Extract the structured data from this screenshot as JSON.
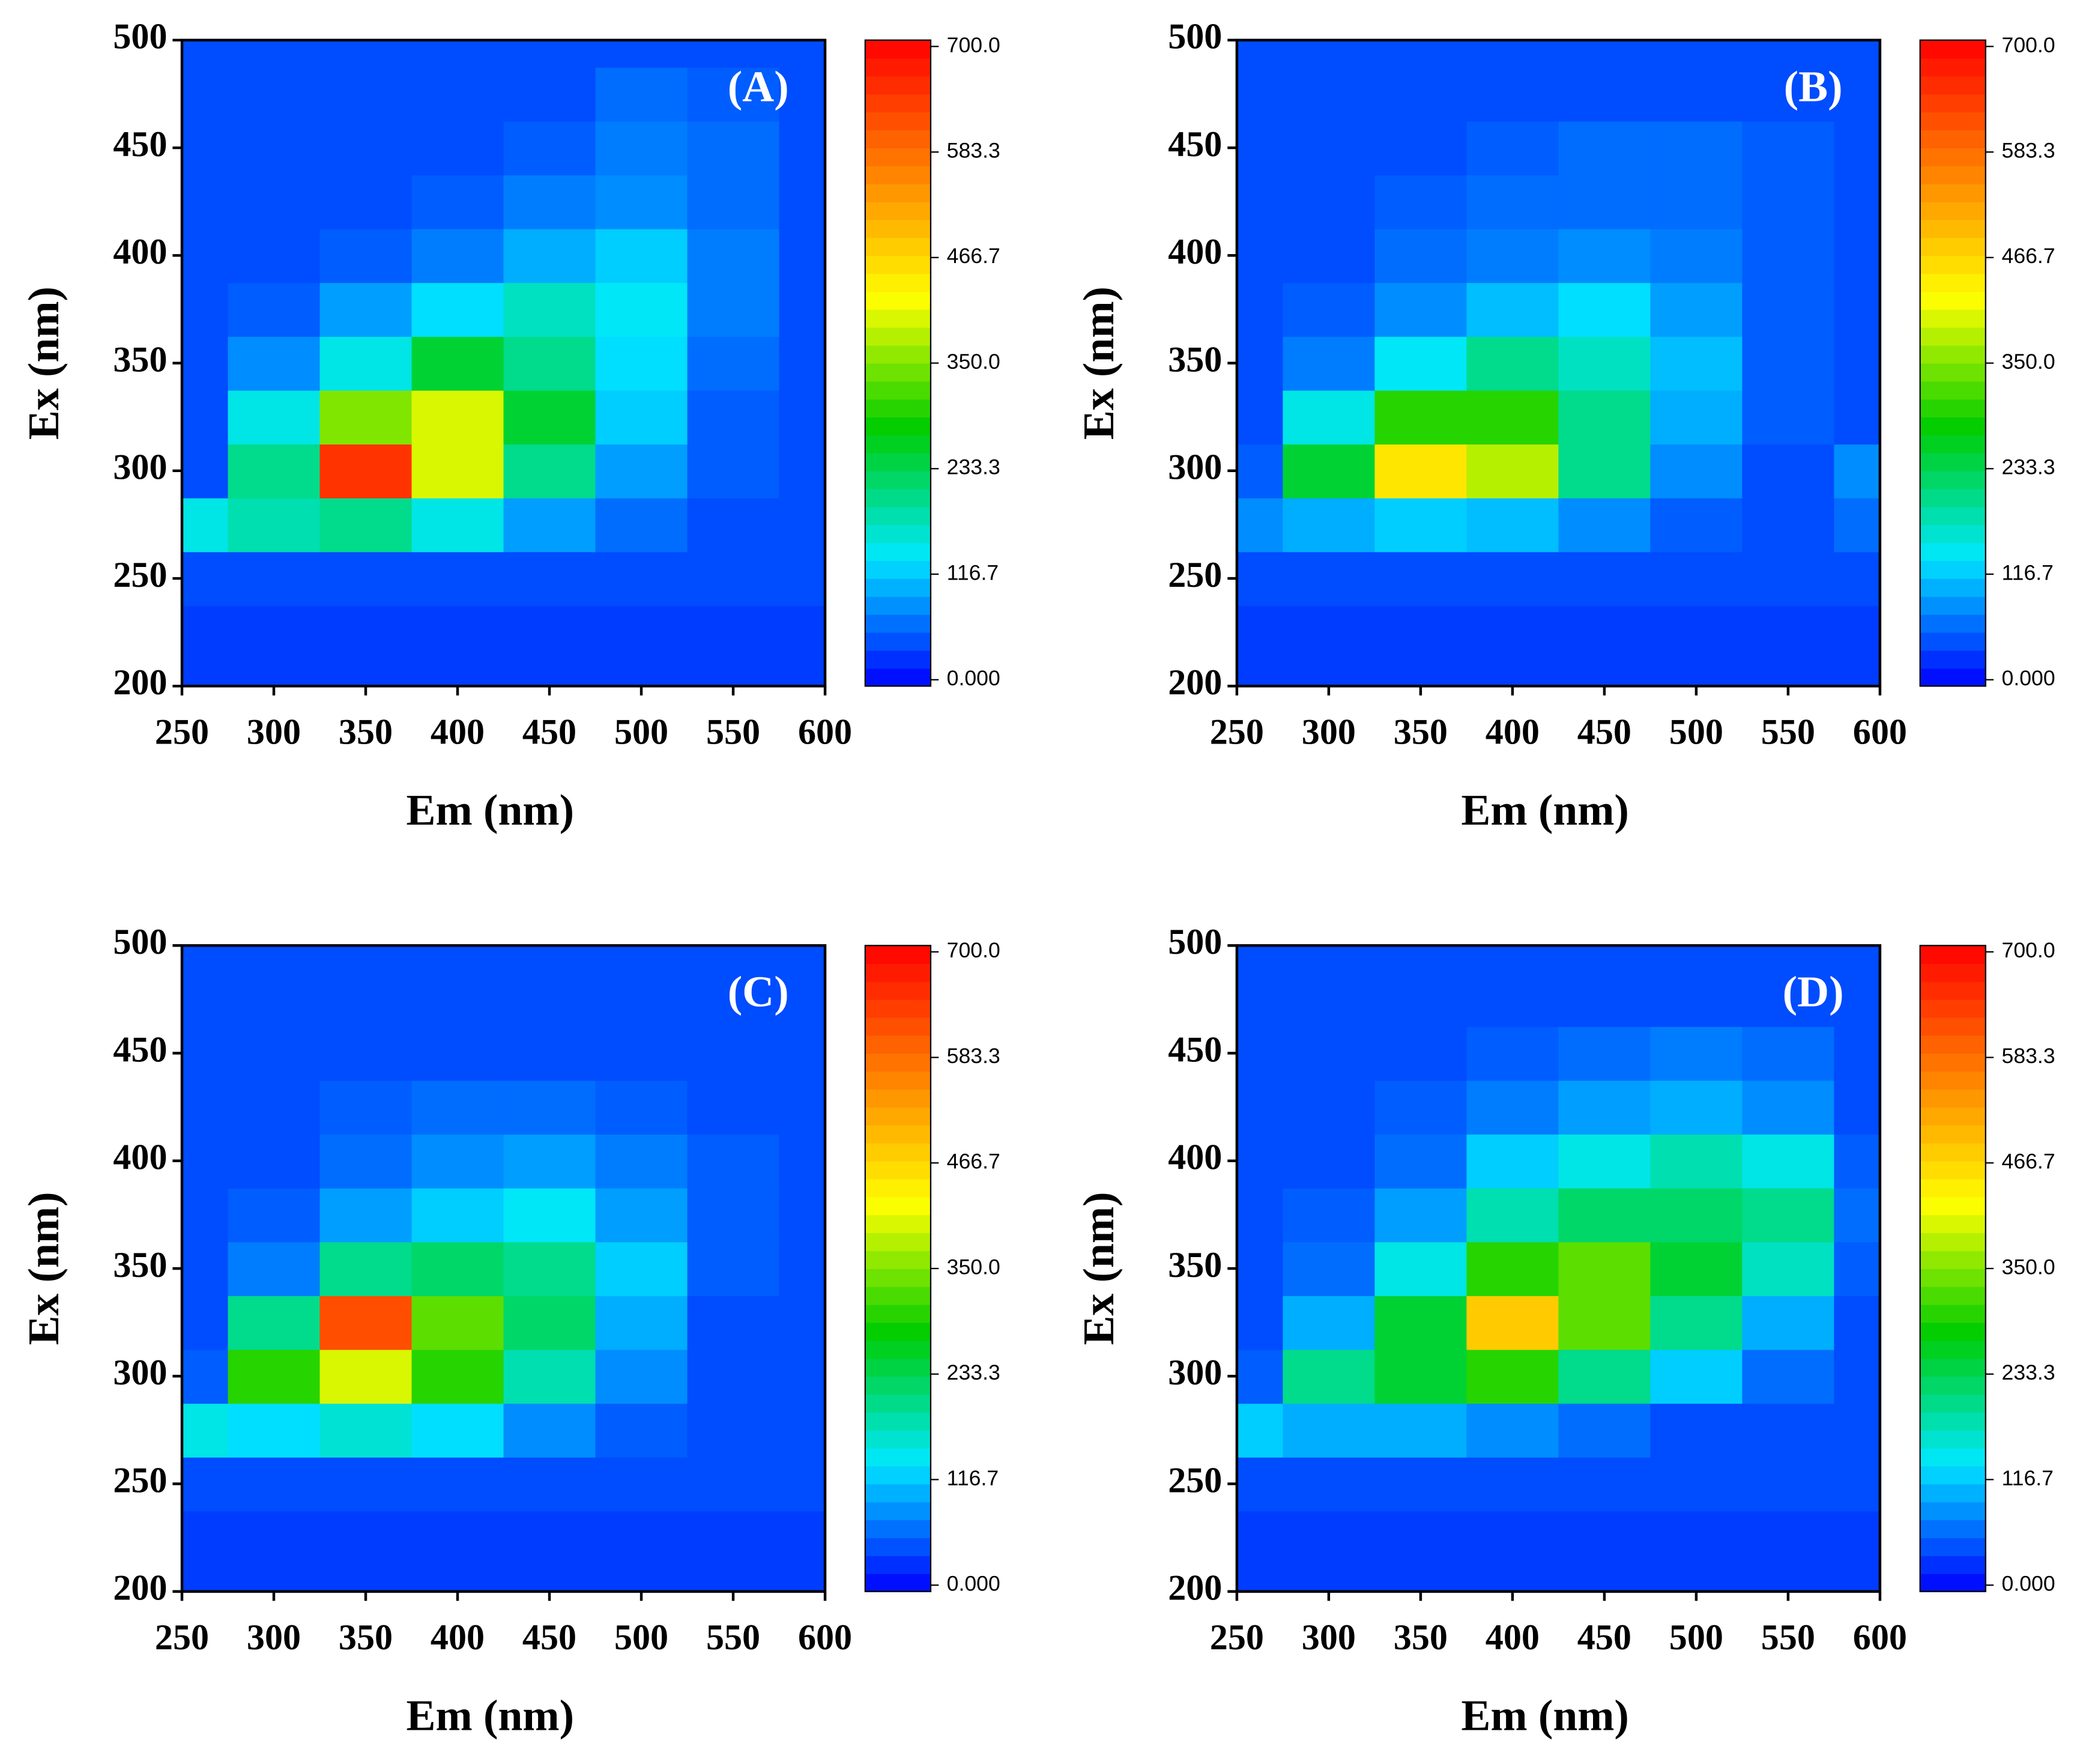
{
  "chart_data": [
    {
      "type": "contour",
      "label": "(A)",
      "x_label": "Em (nm)",
      "y_label": "Ex (nm)",
      "x": [
        250,
        300,
        350,
        400,
        450,
        500,
        550,
        600
      ],
      "y": [
        200,
        225,
        250,
        275,
        300,
        325,
        350,
        375,
        400,
        425,
        450,
        475,
        500
      ],
      "z": [
        [
          30,
          30,
          30,
          30,
          30,
          30,
          30,
          30
        ],
        [
          30,
          30,
          30,
          30,
          30,
          30,
          30,
          30
        ],
        [
          40,
          40,
          40,
          40,
          40,
          40,
          40,
          40
        ],
        [
          150,
          180,
          200,
          150,
          90,
          60,
          40,
          40
        ],
        [
          40,
          200,
          650,
          400,
          200,
          90,
          50,
          40
        ],
        [
          40,
          150,
          350,
          400,
          250,
          120,
          50,
          40
        ],
        [
          40,
          80,
          150,
          250,
          200,
          130,
          60,
          40
        ],
        [
          40,
          50,
          90,
          130,
          170,
          140,
          70,
          40
        ],
        [
          40,
          40,
          50,
          70,
          100,
          120,
          70,
          40
        ],
        [
          40,
          40,
          40,
          50,
          70,
          80,
          60,
          40
        ],
        [
          40,
          40,
          40,
          40,
          50,
          70,
          60,
          40
        ],
        [
          40,
          40,
          40,
          40,
          40,
          60,
          50,
          40
        ],
        [
          40,
          40,
          40,
          40,
          40,
          40,
          40,
          40
        ]
      ],
      "xlim": [
        250,
        600
      ],
      "ylim": [
        200,
        500
      ],
      "xticks": [
        250,
        300,
        350,
        400,
        450,
        500,
        550,
        600
      ],
      "yticks": [
        200,
        250,
        300,
        350,
        400,
        450,
        500
      ],
      "zlim": [
        -7,
        707
      ],
      "zticks": [
        {
          "value": 0,
          "label": "0.000"
        },
        116.7,
        233.3,
        {
          "value": 350,
          "label": "350.0"
        },
        466.7,
        583.3,
        {
          "value": 700,
          "label": "700.0"
        }
      ],
      "colormap": [
        "#0000ff",
        "#00e8ff",
        "#00cc00",
        "#ffff00",
        "#ff8000",
        "#ff0000"
      ]
    },
    {
      "type": "contour",
      "label": "(B)",
      "x_label": "Em (nm)",
      "y_label": "Ex (nm)",
      "x": [
        250,
        300,
        350,
        400,
        450,
        500,
        550,
        600
      ],
      "y": [
        200,
        225,
        250,
        275,
        300,
        325,
        350,
        375,
        400,
        425,
        450,
        475,
        500
      ],
      "z": [
        [
          30,
          30,
          30,
          30,
          30,
          30,
          30,
          30
        ],
        [
          30,
          30,
          30,
          30,
          30,
          30,
          30,
          30
        ],
        [
          40,
          40,
          40,
          40,
          40,
          40,
          40,
          40
        ],
        [
          80,
          100,
          120,
          110,
          80,
          50,
          40,
          60
        ],
        [
          50,
          250,
          450,
          380,
          200,
          80,
          40,
          80
        ],
        [
          40,
          150,
          300,
          300,
          200,
          100,
          50,
          40
        ],
        [
          40,
          70,
          140,
          200,
          170,
          110,
          50,
          40
        ],
        [
          40,
          50,
          80,
          110,
          130,
          90,
          50,
          40
        ],
        [
          40,
          40,
          60,
          70,
          80,
          70,
          50,
          40
        ],
        [
          40,
          40,
          50,
          60,
          60,
          60,
          50,
          40
        ],
        [
          40,
          40,
          40,
          50,
          60,
          60,
          50,
          40
        ],
        [
          40,
          40,
          40,
          40,
          40,
          40,
          40,
          40
        ],
        [
          40,
          40,
          40,
          40,
          40,
          40,
          40,
          40
        ]
      ],
      "xlim": [
        250,
        600
      ],
      "ylim": [
        200,
        500
      ],
      "xticks": [
        250,
        300,
        350,
        400,
        450,
        500,
        550,
        600
      ],
      "yticks": [
        200,
        250,
        300,
        350,
        400,
        450,
        500
      ],
      "zlim": [
        -7,
        707
      ],
      "zticks": [
        {
          "value": 0,
          "label": "0.000"
        },
        116.7,
        233.3,
        {
          "value": 350,
          "label": "350.0"
        },
        466.7,
        583.3,
        {
          "value": 700,
          "label": "700.0"
        }
      ],
      "colormap": [
        "#0000ff",
        "#00e8ff",
        "#00cc00",
        "#ffff00",
        "#ff8000",
        "#ff0000"
      ]
    },
    {
      "type": "contour",
      "label": "(C)",
      "x_label": "Em (nm)",
      "y_label": "Ex (nm)",
      "x": [
        250,
        300,
        350,
        400,
        450,
        500,
        550,
        600
      ],
      "y": [
        200,
        225,
        250,
        275,
        300,
        325,
        350,
        375,
        400,
        425,
        450,
        475,
        500
      ],
      "z": [
        [
          30,
          30,
          30,
          30,
          30,
          30,
          30,
          30
        ],
        [
          30,
          30,
          30,
          30,
          30,
          30,
          30,
          30
        ],
        [
          40,
          40,
          40,
          40,
          40,
          40,
          40,
          40
        ],
        [
          150,
          130,
          160,
          130,
          80,
          50,
          40,
          40
        ],
        [
          50,
          300,
          400,
          300,
          180,
          80,
          40,
          40
        ],
        [
          40,
          200,
          620,
          330,
          220,
          100,
          40,
          40
        ],
        [
          40,
          70,
          200,
          220,
          200,
          120,
          50,
          40
        ],
        [
          40,
          50,
          90,
          120,
          140,
          90,
          50,
          40
        ],
        [
          40,
          40,
          60,
          80,
          90,
          70,
          50,
          40
        ],
        [
          40,
          40,
          50,
          60,
          60,
          50,
          40,
          40
        ],
        [
          40,
          40,
          40,
          40,
          40,
          40,
          40,
          40
        ],
        [
          40,
          40,
          40,
          40,
          40,
          40,
          40,
          40
        ],
        [
          40,
          40,
          40,
          40,
          40,
          40,
          40,
          40
        ]
      ],
      "xlim": [
        250,
        600
      ],
      "ylim": [
        200,
        500
      ],
      "xticks": [
        250,
        300,
        350,
        400,
        450,
        500,
        550,
        600
      ],
      "yticks": [
        200,
        250,
        300,
        350,
        400,
        450,
        500
      ],
      "zlim": [
        -7,
        707
      ],
      "zticks": [
        {
          "value": 0,
          "label": "0.000"
        },
        116.7,
        233.3,
        {
          "value": 350,
          "label": "350.0"
        },
        466.7,
        583.3,
        {
          "value": 700,
          "label": "700.0"
        }
      ],
      "colormap": [
        "#0000ff",
        "#00e8ff",
        "#00cc00",
        "#ffff00",
        "#ff8000",
        "#ff0000"
      ]
    },
    {
      "type": "contour",
      "label": "(D)",
      "x_label": "Em (nm)",
      "y_label": "Ex (nm)",
      "x": [
        250,
        300,
        350,
        400,
        450,
        500,
        550,
        600
      ],
      "y": [
        200,
        225,
        250,
        275,
        300,
        325,
        350,
        375,
        400,
        425,
        450,
        475,
        500
      ],
      "z": [
        [
          30,
          30,
          30,
          30,
          30,
          30,
          30,
          30
        ],
        [
          30,
          30,
          30,
          30,
          30,
          30,
          30,
          30
        ],
        [
          40,
          40,
          40,
          40,
          40,
          40,
          40,
          40
        ],
        [
          120,
          100,
          100,
          80,
          60,
          40,
          40,
          40
        ],
        [
          50,
          200,
          250,
          300,
          200,
          120,
          60,
          40
        ],
        [
          40,
          100,
          250,
          480,
          330,
          200,
          100,
          40
        ],
        [
          40,
          60,
          150,
          300,
          330,
          250,
          170,
          50
        ],
        [
          40,
          50,
          90,
          180,
          220,
          220,
          200,
          60
        ],
        [
          40,
          40,
          60,
          120,
          150,
          180,
          150,
          50
        ],
        [
          40,
          40,
          50,
          70,
          90,
          100,
          80,
          40
        ],
        [
          40,
          40,
          40,
          50,
          60,
          70,
          60,
          40
        ],
        [
          40,
          40,
          40,
          40,
          40,
          40,
          40,
          40
        ],
        [
          40,
          40,
          40,
          40,
          40,
          40,
          40,
          40
        ]
      ],
      "xlim": [
        250,
        600
      ],
      "ylim": [
        200,
        500
      ],
      "xticks": [
        250,
        300,
        350,
        400,
        450,
        500,
        550,
        600
      ],
      "yticks": [
        200,
        250,
        300,
        350,
        400,
        450,
        500
      ],
      "zlim": [
        -7,
        707
      ],
      "zticks": [
        {
          "value": 0,
          "label": "0.000"
        },
        116.7,
        233.3,
        {
          "value": 350,
          "label": "350.0"
        },
        466.7,
        583.3,
        {
          "value": 700,
          "label": "700.0"
        }
      ],
      "colormap": [
        "#0000ff",
        "#00e8ff",
        "#00cc00",
        "#ffff00",
        "#ff8000",
        "#ff0000"
      ]
    }
  ]
}
